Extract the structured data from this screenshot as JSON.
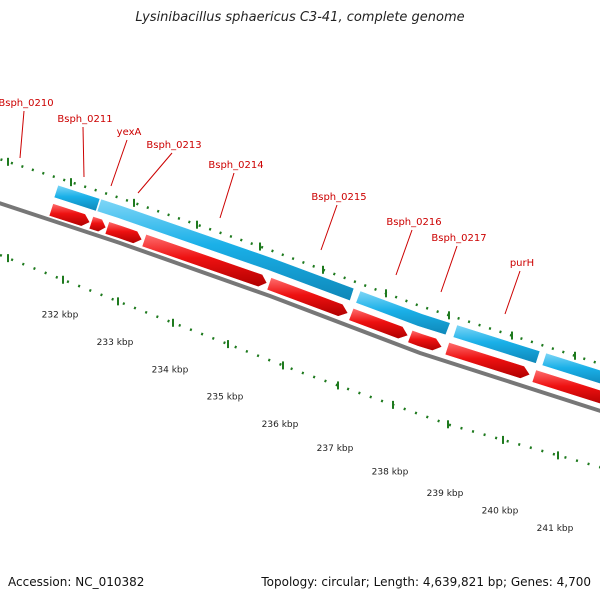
{
  "title": "Lysinibacillus sphaericus C3-41, complete genome",
  "accession": "Accession: NC_010382",
  "summary": "Topology: circular; Length: 4,639,821 bp; Genes: 4,700",
  "colors": {
    "forward_gene": "#1ab0e8",
    "reverse_gene": "#ee1111",
    "backbone": "#777777",
    "tick": "#1e7a1e",
    "label": "#cc0000"
  },
  "gene_labels": [
    "Bsph_0210",
    "Bsph_0211",
    "yexA",
    "Bsph_0213",
    "Bsph_0214",
    "Bsph_0215",
    "Bsph_0216",
    "Bsph_0217",
    "purH"
  ],
  "kbp_labels": [
    "232 kbp",
    "233 kbp",
    "234 kbp",
    "235 kbp",
    "236 kbp",
    "237 kbp",
    "238 kbp",
    "239 kbp",
    "240 kbp",
    "241 kbp"
  ]
}
